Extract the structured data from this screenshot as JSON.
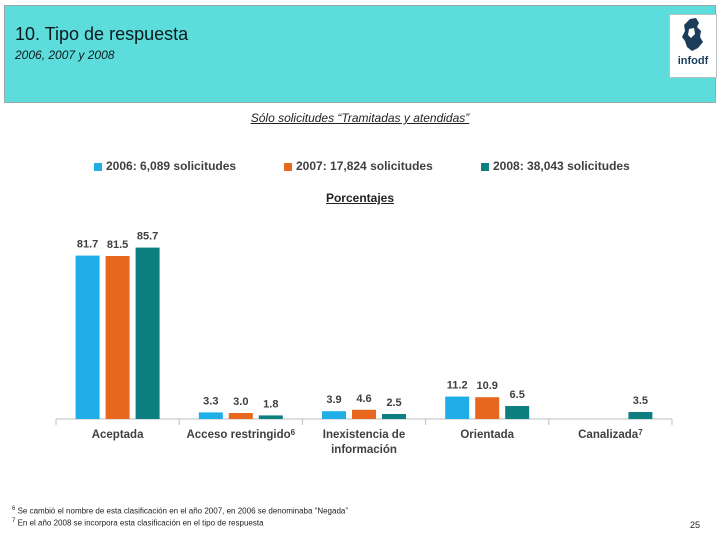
{
  "header": {
    "title": "10. Tipo de respuesta",
    "subtitle": "2006, 2007 y 2008",
    "logo_text": "infodf"
  },
  "chart_data": {
    "type": "bar",
    "title": "Sólo solicitudes “Tramitadas y atendidas”",
    "unit_label": "Porcentajes",
    "categories": [
      "Aceptada",
      "Acceso restringido",
      "Inexistencia de información",
      "Orientada",
      "Canalizada"
    ],
    "category_superscripts": [
      "",
      "6",
      "",
      "",
      "7"
    ],
    "series": [
      {
        "name": "2006: 6,089 solicitudes",
        "color": "#1faee8",
        "values": [
          81.7,
          3.3,
          3.9,
          11.2,
          null
        ],
        "labels": [
          "81.7",
          "3.3",
          "3.9",
          "11.2",
          ""
        ]
      },
      {
        "name": "2007: 17,824 solicitudes",
        "color": "#e8671e",
        "values": [
          81.5,
          3.0,
          4.6,
          10.9,
          null
        ],
        "labels": [
          "81.5",
          "3.0",
          "4.6",
          "10.9",
          ""
        ]
      },
      {
        "name": "2008: 38,043 solicitudes",
        "color": "#0d7f80",
        "values": [
          85.7,
          1.8,
          2.5,
          6.5,
          3.5
        ],
        "labels": [
          "85.7",
          "1.8",
          "2.5",
          "6.5",
          "3.5"
        ]
      }
    ],
    "ylim": [
      0,
      100
    ],
    "xlabel": "",
    "ylabel": ""
  },
  "footnotes": [
    {
      "mark": "6",
      "text": "Se cambió el nombre de esta clasificación en el  año 2007, en 2006 se denominaba “Negada”"
    },
    {
      "mark": "7",
      "text": "En el año 2008 se incorpora esta clasificación en el tipo de respuesta"
    }
  ],
  "page_number": "25"
}
